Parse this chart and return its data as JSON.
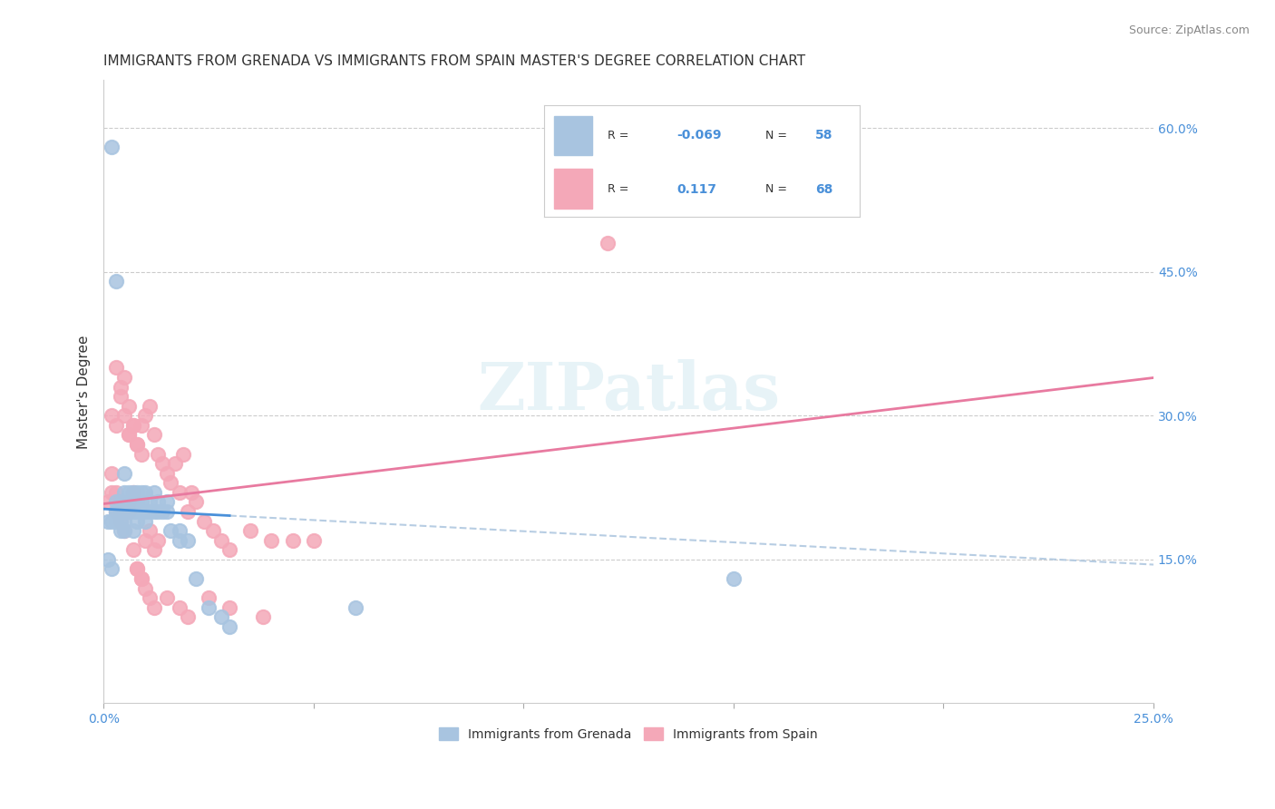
{
  "title": "IMMIGRANTS FROM GRENADA VS IMMIGRANTS FROM SPAIN MASTER'S DEGREE CORRELATION CHART",
  "source": "Source: ZipAtlas.com",
  "ylabel": "Master's Degree",
  "right_yticks": [
    "60.0%",
    "45.0%",
    "30.0%",
    "15.0%"
  ],
  "right_ytick_vals": [
    0.6,
    0.45,
    0.3,
    0.15
  ],
  "xlim": [
    0.0,
    0.25
  ],
  "ylim": [
    0.0,
    0.65
  ],
  "grenada_R": "-0.069",
  "grenada_N": "58",
  "spain_R": "0.117",
  "spain_N": "68",
  "legend_label1": "Immigrants from Grenada",
  "legend_label2": "Immigrants from Spain",
  "grenada_color": "#a8c4e0",
  "spain_color": "#f4a8b8",
  "grenada_line_color": "#4a90d9",
  "spain_line_color": "#e87aa0",
  "dashed_line_color": "#b0c8e0",
  "grenada_points_x": [
    0.002,
    0.003,
    0.003,
    0.004,
    0.004,
    0.005,
    0.005,
    0.005,
    0.005,
    0.006,
    0.006,
    0.006,
    0.007,
    0.007,
    0.007,
    0.008,
    0.008,
    0.008,
    0.009,
    0.009,
    0.009,
    0.01,
    0.01,
    0.011,
    0.011,
    0.012,
    0.012,
    0.013,
    0.013,
    0.014,
    0.015,
    0.015,
    0.016,
    0.018,
    0.018,
    0.02,
    0.022,
    0.025,
    0.028,
    0.03,
    0.001,
    0.002,
    0.003,
    0.004,
    0.005,
    0.006,
    0.007,
    0.008,
    0.009,
    0.01,
    0.001,
    0.002,
    0.06,
    0.003,
    0.004,
    0.005,
    0.003,
    0.15
  ],
  "grenada_points_y": [
    0.58,
    0.44,
    0.19,
    0.2,
    0.18,
    0.2,
    0.21,
    0.22,
    0.24,
    0.2,
    0.21,
    0.22,
    0.2,
    0.21,
    0.22,
    0.2,
    0.21,
    0.22,
    0.2,
    0.21,
    0.22,
    0.2,
    0.22,
    0.2,
    0.21,
    0.2,
    0.22,
    0.2,
    0.21,
    0.2,
    0.2,
    0.21,
    0.18,
    0.17,
    0.18,
    0.17,
    0.13,
    0.1,
    0.09,
    0.08,
    0.19,
    0.19,
    0.2,
    0.21,
    0.19,
    0.2,
    0.18,
    0.19,
    0.2,
    0.19,
    0.15,
    0.14,
    0.1,
    0.2,
    0.19,
    0.18,
    0.21,
    0.13
  ],
  "spain_points_x": [
    0.002,
    0.003,
    0.004,
    0.005,
    0.006,
    0.006,
    0.007,
    0.008,
    0.009,
    0.01,
    0.011,
    0.012,
    0.013,
    0.014,
    0.015,
    0.016,
    0.017,
    0.018,
    0.019,
    0.02,
    0.021,
    0.022,
    0.024,
    0.026,
    0.028,
    0.03,
    0.035,
    0.04,
    0.045,
    0.05,
    0.002,
    0.003,
    0.004,
    0.005,
    0.006,
    0.007,
    0.008,
    0.009,
    0.003,
    0.004,
    0.005,
    0.006,
    0.007,
    0.12,
    0.008,
    0.009,
    0.01,
    0.011,
    0.012,
    0.013,
    0.001,
    0.002,
    0.003,
    0.004,
    0.005,
    0.006,
    0.007,
    0.008,
    0.009,
    0.01,
    0.011,
    0.012,
    0.015,
    0.018,
    0.02,
    0.025,
    0.03,
    0.038
  ],
  "spain_points_y": [
    0.24,
    0.35,
    0.33,
    0.34,
    0.28,
    0.31,
    0.29,
    0.27,
    0.26,
    0.3,
    0.31,
    0.28,
    0.26,
    0.25,
    0.24,
    0.23,
    0.25,
    0.22,
    0.26,
    0.2,
    0.22,
    0.21,
    0.19,
    0.18,
    0.17,
    0.16,
    0.18,
    0.17,
    0.17,
    0.17,
    0.3,
    0.29,
    0.32,
    0.3,
    0.28,
    0.29,
    0.27,
    0.29,
    0.22,
    0.21,
    0.2,
    0.21,
    0.22,
    0.48,
    0.14,
    0.13,
    0.17,
    0.18,
    0.16,
    0.17,
    0.21,
    0.22,
    0.2,
    0.19,
    0.18,
    0.2,
    0.16,
    0.14,
    0.13,
    0.12,
    0.11,
    0.1,
    0.11,
    0.1,
    0.09,
    0.11,
    0.1,
    0.09
  ]
}
